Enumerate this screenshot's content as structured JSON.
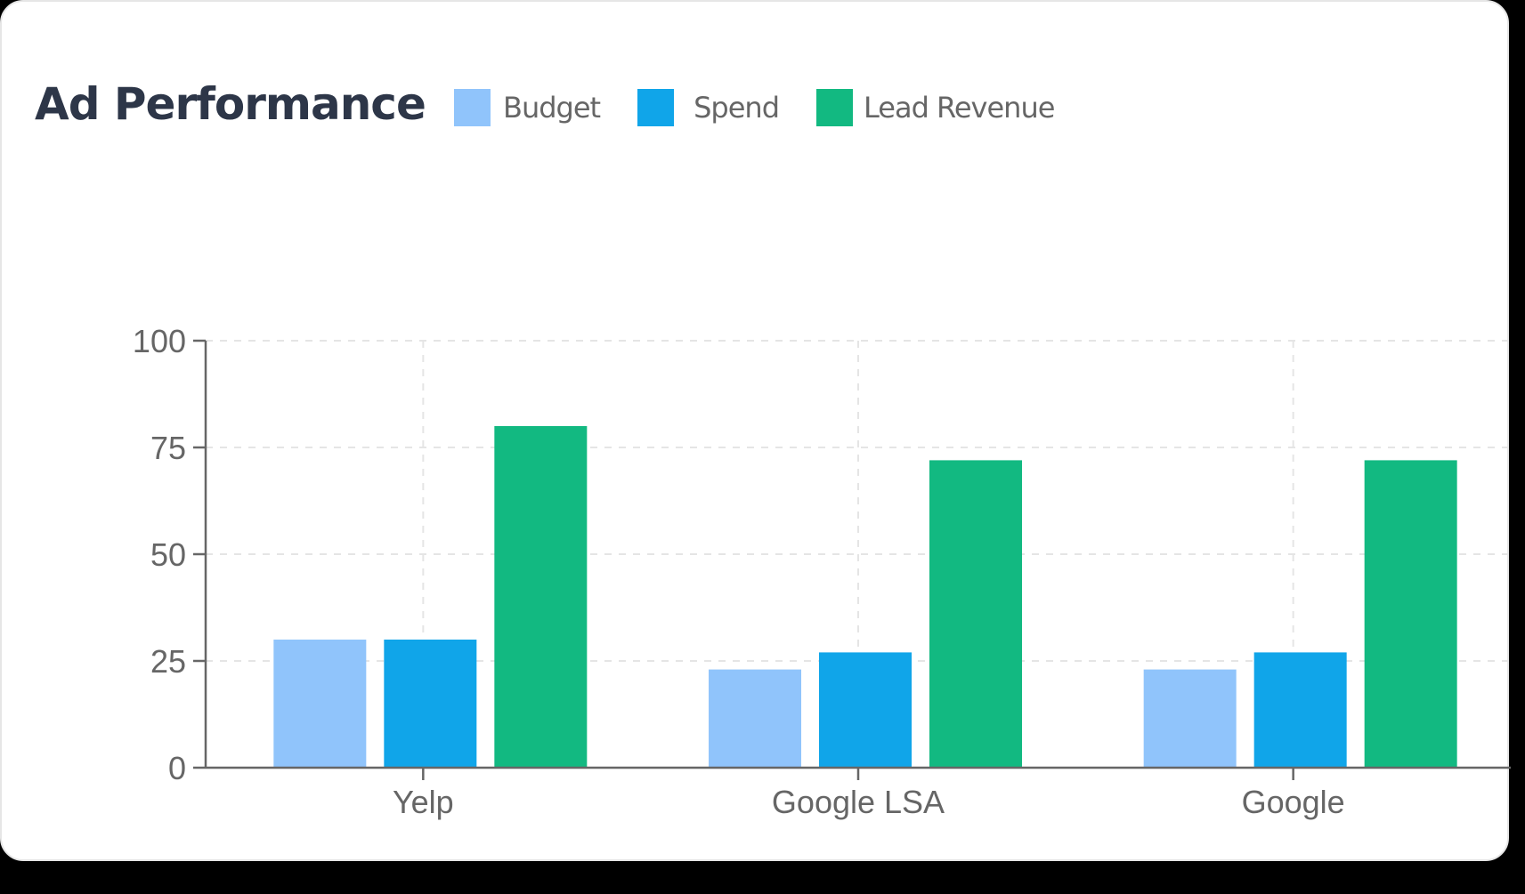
{
  "card": {
    "title": "Ad Performance"
  },
  "legend": [
    {
      "label": "Budget",
      "color": "#90c4fb"
    },
    {
      "label": "Spend",
      "color": "#10a5e9"
    },
    {
      "label": "Lead Revenue",
      "color": "#12b981"
    }
  ],
  "chart_data": {
    "type": "bar",
    "title": "Ad Performance",
    "categories": [
      "Yelp",
      "Google LSA",
      "Google"
    ],
    "series": [
      {
        "name": "Budget",
        "color": "#90c4fb",
        "values": [
          30,
          23,
          23
        ]
      },
      {
        "name": "Spend",
        "color": "#10a5e9",
        "values": [
          30,
          27,
          27
        ]
      },
      {
        "name": "Lead Revenue",
        "color": "#12b981",
        "values": [
          80,
          72,
          72
        ]
      }
    ],
    "xlabel": "",
    "ylabel": "",
    "ylim": [
      0,
      100
    ],
    "yticks": [
      0,
      25,
      50,
      75,
      100
    ],
    "grid": true,
    "grid_style": "dashed",
    "legend_position": "top"
  }
}
